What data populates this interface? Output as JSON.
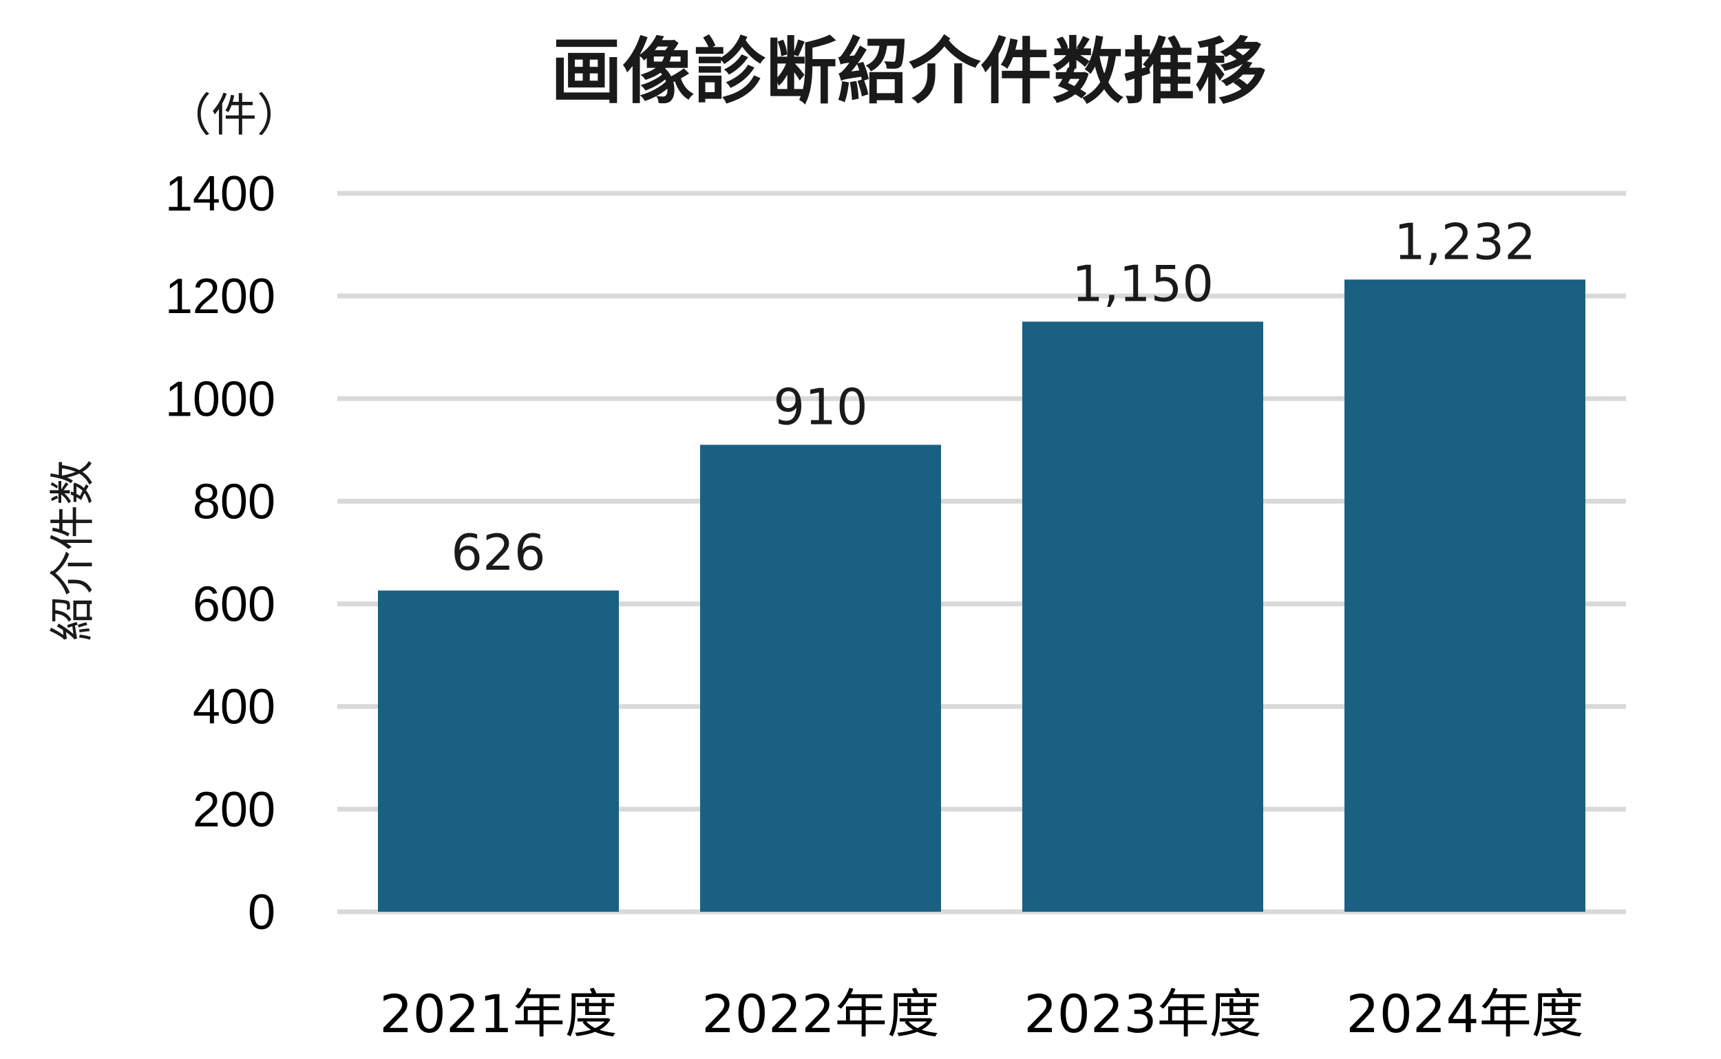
{
  "chart_data": {
    "type": "bar",
    "title": "画像診断紹介件数推移",
    "unit_label": "（件）",
    "ylabel": "紹介件数",
    "xlabel": "",
    "categories": [
      "2021年度",
      "2022年度",
      "2023年度",
      "2024年度"
    ],
    "values": [
      626,
      910,
      1150,
      1232
    ],
    "data_labels": [
      "626",
      "910",
      "1,150",
      "1,232"
    ],
    "ylim": [
      0,
      1400
    ],
    "yticks": [
      0,
      200,
      400,
      600,
      800,
      1000,
      1200,
      1400
    ],
    "ytick_labels": [
      "0",
      "200",
      "400",
      "600",
      "800",
      "1000",
      "1200",
      "1400"
    ],
    "grid": true,
    "legend": "none",
    "bar_color": "#1a6082",
    "grid_color": "#d9d9d9"
  }
}
